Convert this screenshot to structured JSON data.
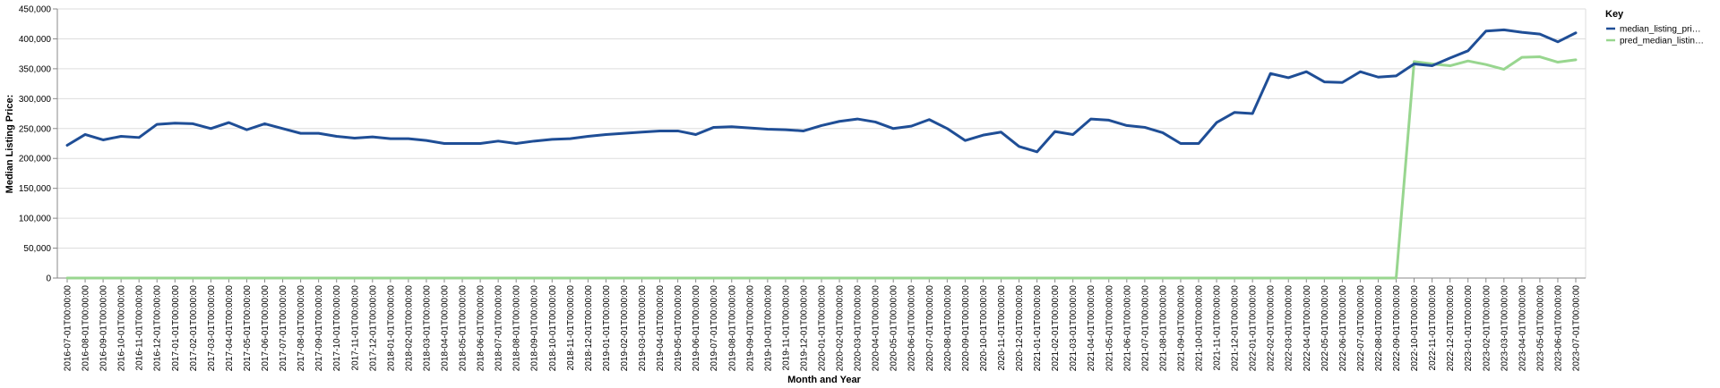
{
  "chart_data": {
    "type": "line",
    "xlabel": "Month and Year",
    "ylabel": "Median Listing Price:",
    "ylim": [
      0,
      450000
    ],
    "yticks": [
      "0",
      "50,000",
      "100,000",
      "150,000",
      "200,000",
      "250,000",
      "300,000",
      "350,000",
      "400,000",
      "450,000"
    ],
    "ytick_values": [
      0,
      50000,
      100000,
      150000,
      200000,
      250000,
      300000,
      350000,
      400000,
      450000
    ],
    "grid": true,
    "legend": {
      "title": "Key",
      "position": "top-right"
    },
    "x": [
      "2016-07-01T00:00:00",
      "2016-08-01T00:00:00",
      "2016-09-01T00:00:00",
      "2016-10-01T00:00:00",
      "2016-11-01T00:00:00",
      "2016-12-01T00:00:00",
      "2017-01-01T00:00:00",
      "2017-02-01T00:00:00",
      "2017-03-01T00:00:00",
      "2017-04-01T00:00:00",
      "2017-05-01T00:00:00",
      "2017-06-01T00:00:00",
      "2017-07-01T00:00:00",
      "2017-08-01T00:00:00",
      "2017-09-01T00:00:00",
      "2017-10-01T00:00:00",
      "2017-11-01T00:00:00",
      "2017-12-01T00:00:00",
      "2018-01-01T00:00:00",
      "2018-02-01T00:00:00",
      "2018-03-01T00:00:00",
      "2018-04-01T00:00:00",
      "2018-05-01T00:00:00",
      "2018-06-01T00:00:00",
      "2018-07-01T00:00:00",
      "2018-08-01T00:00:00",
      "2018-09-01T00:00:00",
      "2018-10-01T00:00:00",
      "2018-11-01T00:00:00",
      "2018-12-01T00:00:00",
      "2019-01-01T00:00:00",
      "2019-02-01T00:00:00",
      "2019-03-01T00:00:00",
      "2019-04-01T00:00:00",
      "2019-05-01T00:00:00",
      "2019-06-01T00:00:00",
      "2019-07-01T00:00:00",
      "2019-08-01T00:00:00",
      "2019-09-01T00:00:00",
      "2019-10-01T00:00:00",
      "2019-11-01T00:00:00",
      "2019-12-01T00:00:00",
      "2020-01-01T00:00:00",
      "2020-02-01T00:00:00",
      "2020-03-01T00:00:00",
      "2020-04-01T00:00:00",
      "2020-05-01T00:00:00",
      "2020-06-01T00:00:00",
      "2020-07-01T00:00:00",
      "2020-08-01T00:00:00",
      "2020-09-01T00:00:00",
      "2020-10-01T00:00:00",
      "2020-11-01T00:00:00",
      "2020-12-01T00:00:00",
      "2021-01-01T00:00:00",
      "2021-02-01T00:00:00",
      "2021-03-01T00:00:00",
      "2021-04-01T00:00:00",
      "2021-05-01T00:00:00",
      "2021-06-01T00:00:00",
      "2021-07-01T00:00:00",
      "2021-08-01T00:00:00",
      "2021-09-01T00:00:00",
      "2021-10-01T00:00:00",
      "2021-11-01T00:00:00",
      "2021-12-01T00:00:00",
      "2022-01-01T00:00:00",
      "2022-02-01T00:00:00",
      "2022-03-01T00:00:00",
      "2022-04-01T00:00:00",
      "2022-05-01T00:00:00",
      "2022-06-01T00:00:00",
      "2022-07-01T00:00:00",
      "2022-08-01T00:00:00",
      "2022-09-01T00:00:00",
      "2022-10-01T00:00:00",
      "2022-11-01T00:00:00",
      "2022-12-01T00:00:00",
      "2023-01-01T00:00:00",
      "2023-02-01T00:00:00",
      "2023-03-01T00:00:00",
      "2023-04-01T00:00:00",
      "2023-05-01T00:00:00",
      "2023-06-01T00:00:00",
      "2023-07-01T00:00:00"
    ],
    "series": [
      {
        "name": "median_listing_pri…",
        "color": "#1f4e96",
        "values": [
          222000,
          240000,
          231000,
          237000,
          235000,
          257000,
          259000,
          258000,
          250000,
          260000,
          248000,
          258000,
          250000,
          242000,
          242000,
          237000,
          234000,
          236000,
          233000,
          233000,
          230000,
          225000,
          225000,
          225000,
          229000,
          225000,
          229000,
          232000,
          233000,
          237000,
          240000,
          242000,
          244000,
          246000,
          246000,
          240000,
          252000,
          253000,
          251000,
          249000,
          248000,
          246000,
          255000,
          262000,
          266000,
          261000,
          250000,
          254000,
          265000,
          250000,
          230000,
          239000,
          244000,
          220000,
          211000,
          245000,
          240000,
          266000,
          264000,
          255000,
          252000,
          243000,
          225000,
          225000,
          260000,
          277000,
          275000,
          342000,
          335000,
          345000,
          328000,
          327000,
          345000,
          336000,
          338000,
          358000,
          355000,
          368000,
          380000,
          413000,
          415000,
          411000,
          408000,
          395000,
          410000
        ]
      },
      {
        "name": "pred_median_listin…",
        "color": "#98d68f",
        "values": [
          0,
          0,
          0,
          0,
          0,
          0,
          0,
          0,
          0,
          0,
          0,
          0,
          0,
          0,
          0,
          0,
          0,
          0,
          0,
          0,
          0,
          0,
          0,
          0,
          0,
          0,
          0,
          0,
          0,
          0,
          0,
          0,
          0,
          0,
          0,
          0,
          0,
          0,
          0,
          0,
          0,
          0,
          0,
          0,
          0,
          0,
          0,
          0,
          0,
          0,
          0,
          0,
          0,
          0,
          0,
          0,
          0,
          0,
          0,
          0,
          0,
          0,
          0,
          0,
          0,
          0,
          0,
          0,
          0,
          0,
          0,
          0,
          0,
          0,
          0,
          362000,
          358000,
          355000,
          363000,
          357000,
          349000,
          369000,
          370000,
          361000,
          365000
        ]
      }
    ]
  }
}
